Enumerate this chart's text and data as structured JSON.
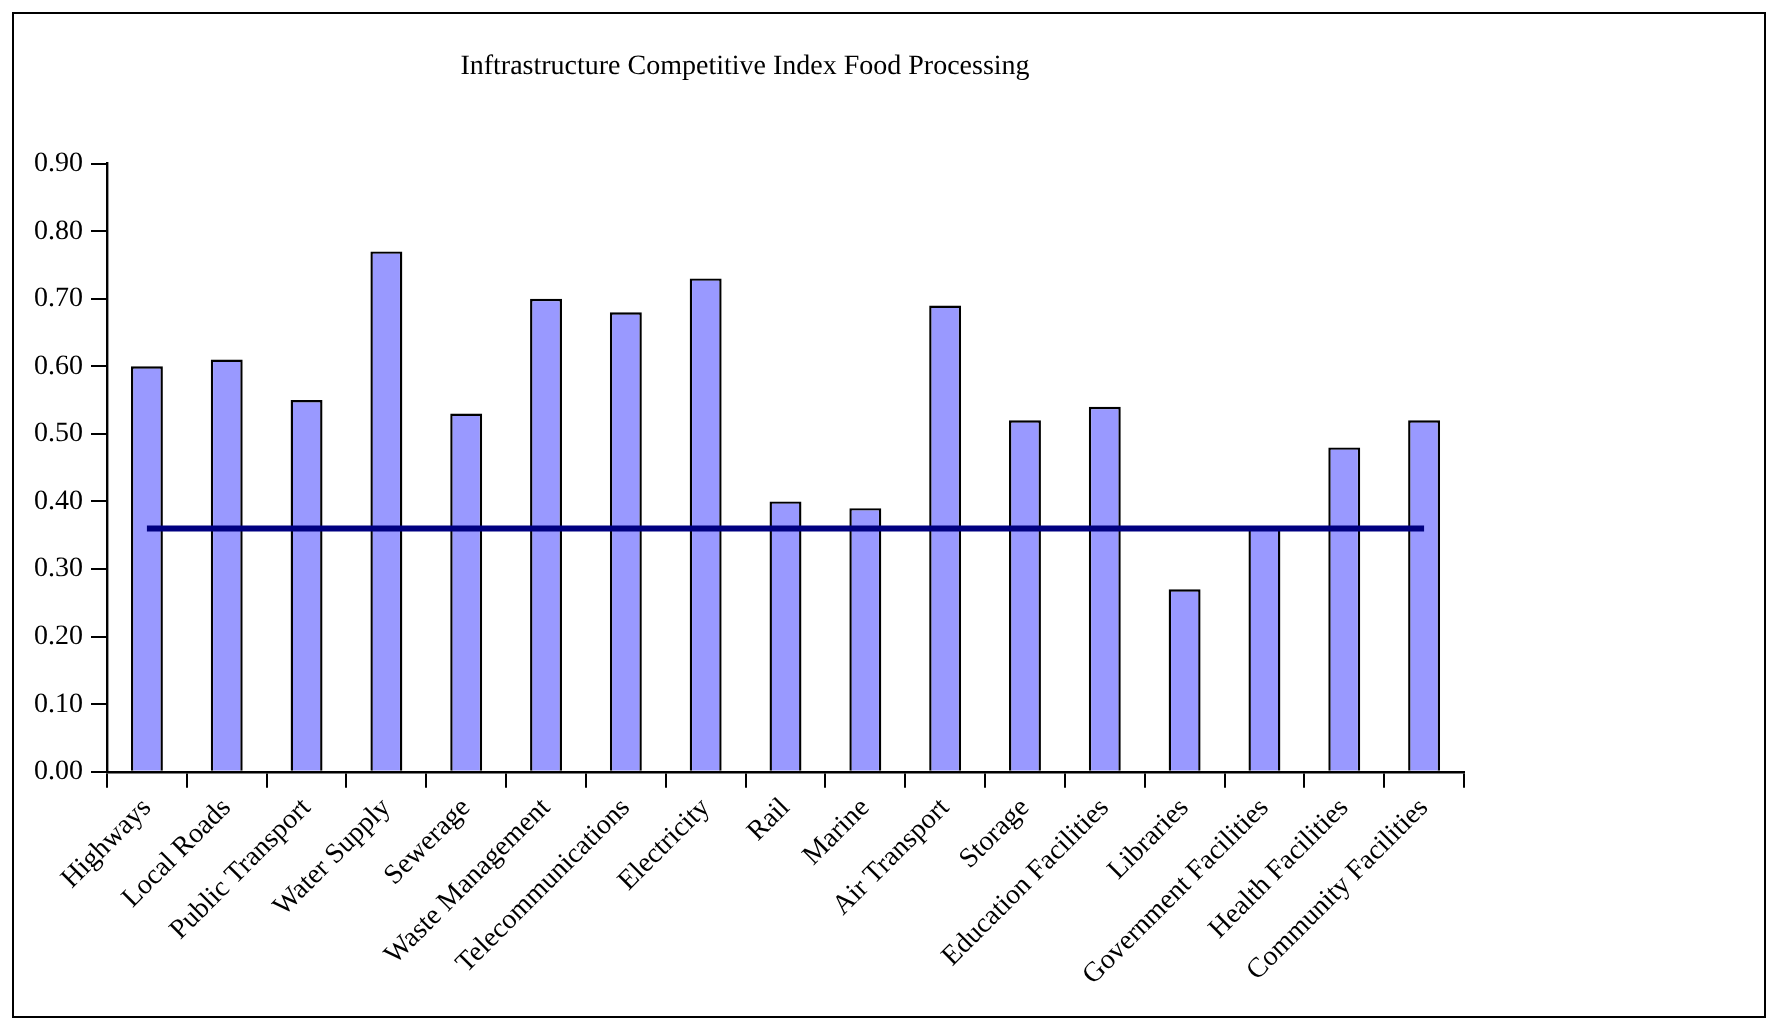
{
  "chart_data": {
    "type": "bar",
    "title": "Inftrastructure Competitive Index Food Processing",
    "categories": [
      "Highways",
      "Local Roads",
      "Public Transport",
      "Water Supply",
      "Sewerage",
      "Waste Management",
      "Telecommunications",
      "Electricity",
      "Rail",
      "Marine",
      "Air Transport",
      "Storage",
      "Education Facilities",
      "Libraries",
      "Government Facilities",
      "Health Facilities",
      "Community Facilities"
    ],
    "values": [
      0.6,
      0.61,
      0.55,
      0.77,
      0.53,
      0.7,
      0.68,
      0.73,
      0.4,
      0.39,
      0.69,
      0.52,
      0.54,
      0.27,
      0.36,
      0.48,
      0.52
    ],
    "color": "#9999ff",
    "ylim": [
      0,
      0.9
    ],
    "yticks": [
      {
        "value": 0,
        "label": "0.00"
      },
      {
        "value": 0.1,
        "label": "0.10"
      },
      {
        "value": 0.2,
        "label": "0.20"
      },
      {
        "value": 0.3,
        "label": "0.30"
      },
      {
        "value": 0.4,
        "label": "0.40"
      },
      {
        "value": 0.5,
        "label": "0.50"
      },
      {
        "value": 0.6,
        "label": "0.60"
      },
      {
        "value": 0.7,
        "label": "0.70"
      },
      {
        "value": 0.8,
        "label": "0.80"
      },
      {
        "value": 0.9,
        "label": "0.90"
      }
    ],
    "ref_lines": [
      {
        "axis": "y",
        "value": 0.36,
        "color": "#000080"
      }
    ],
    "grid": false,
    "legend": false
  }
}
